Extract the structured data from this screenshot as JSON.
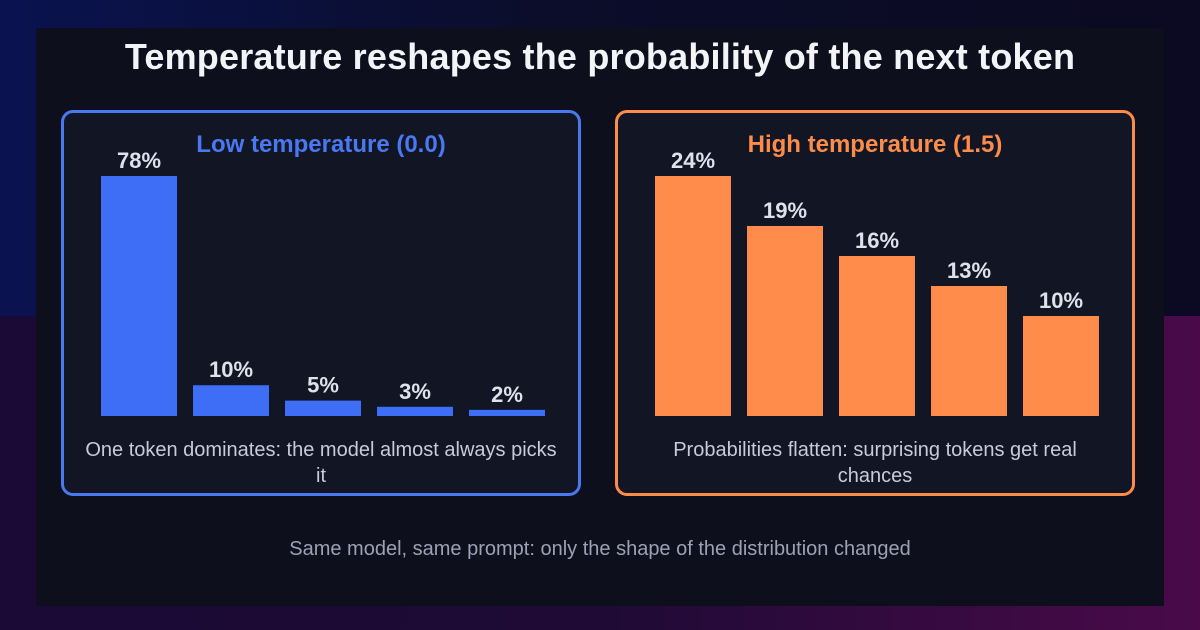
{
  "title": "Temperature reshapes the probability of the next token",
  "footer": "Same model, same prompt: only the shape of the distribution changed",
  "colors": {
    "low": "#3d6ef5",
    "high": "#ff8c4a"
  },
  "chart_data": [
    {
      "type": "bar",
      "title": "Low temperature (0.0)",
      "values": [
        78,
        10,
        5,
        3,
        2
      ],
      "labels": [
        "78%",
        "10%",
        "5%",
        "3%",
        "2%"
      ],
      "caption": "One token dominates: the model almost always picks it",
      "ylim": [
        0,
        78
      ]
    },
    {
      "type": "bar",
      "title": "High temperature (1.5)",
      "values": [
        24,
        19,
        16,
        13,
        10
      ],
      "labels": [
        "24%",
        "19%",
        "16%",
        "13%",
        "10%"
      ],
      "caption": "Probabilities flatten: surprising tokens get real chances",
      "ylim": [
        0,
        24
      ]
    }
  ]
}
